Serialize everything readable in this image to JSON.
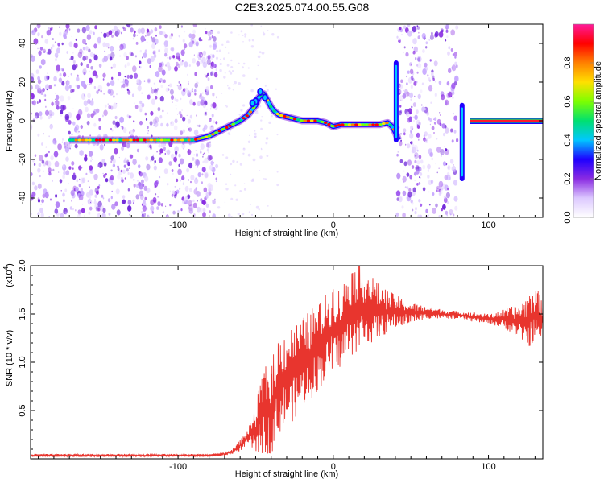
{
  "title": "C2E3.2025.074.00.55.G08",
  "chart_data": [
    {
      "type": "heatmap",
      "xlabel": "Height of straight line (km)",
      "ylabel": "Frequency (Hz)",
      "xlim": [
        -195,
        135
      ],
      "ylim": [
        -50,
        50
      ],
      "xticks": [
        -100,
        0,
        100
      ],
      "yticks": [
        -40,
        -20,
        0,
        20,
        40
      ],
      "colorbar": {
        "label": "Normalized spectral amplitude",
        "range": [
          0.0,
          1.0
        ],
        "ticks": [
          "0.0",
          "0.2",
          "0.4",
          "0.6",
          "0.8"
        ],
        "colors": [
          "#ffffff",
          "#dcc8ff",
          "#8a2be2",
          "#1e00ff",
          "#00c8ff",
          "#00e070",
          "#7dff00",
          "#ffe000",
          "#ff8000",
          "#ff0000",
          "#ff1a9a"
        ]
      },
      "ridge": {
        "x": [
          -170,
          -160,
          -150,
          -140,
          -130,
          -120,
          -110,
          -100,
          -95,
          -90,
          -85,
          -80,
          -75,
          -70,
          -65,
          -60,
          -55,
          -50,
          -48,
          -45,
          -42,
          -40,
          -38,
          -35,
          -30,
          -25,
          -20,
          -15,
          -10,
          -5,
          0,
          5,
          10,
          15,
          20,
          25,
          30,
          35,
          38,
          40,
          42
        ],
        "y": [
          -10,
          -10,
          -10,
          -10,
          -10,
          -10,
          -10,
          -10,
          -10,
          -10,
          -9,
          -8,
          -6,
          -4,
          -2,
          0,
          3,
          8,
          12,
          14,
          10,
          7,
          5,
          3,
          2,
          1,
          0,
          0,
          0,
          -1,
          -3,
          -2,
          -2,
          -2,
          -2,
          -2,
          -2,
          -1,
          -3,
          -6,
          -10
        ]
      },
      "vertical_streaks": [
        {
          "x": 40.5,
          "y": [
            -10,
            30
          ]
        },
        {
          "x": 83,
          "y": [
            -30,
            8
          ]
        }
      ],
      "flat_line": {
        "x": [
          88,
          135
        ],
        "y": 0
      },
      "noise_regions": [
        [
          -195,
          -75
        ],
        [
          41,
          80
        ]
      ]
    },
    {
      "type": "line",
      "xlabel": "Height of straight line (km)",
      "ylabel": "SNR (10 * v/v)",
      "y_multiplier": "(x10",
      "y_exponent": "4",
      "xlim": [
        -195,
        135
      ],
      "ylim": [
        0,
        2.0
      ],
      "xticks": [
        -100,
        0,
        100
      ],
      "yticks": [
        0.5,
        1.0,
        1.5,
        2.0
      ],
      "ytick_labels": [
        "0.5",
        "1.0",
        "1.5",
        "2.0"
      ],
      "color": "#e8352e",
      "envelope": {
        "x": [
          -195,
          -80,
          -70,
          -65,
          -60,
          -55,
          -50,
          -45,
          -40,
          -35,
          -30,
          -25,
          -20,
          -15,
          -10,
          -5,
          0,
          5,
          10,
          15,
          20,
          25,
          30,
          35,
          40,
          50,
          60,
          70,
          80,
          90,
          100,
          110,
          120,
          125,
          130,
          135
        ],
        "lo": [
          0.02,
          0.02,
          0.03,
          0.05,
          0.08,
          0.15,
          0.05,
          0.05,
          0.05,
          0.25,
          0.35,
          0.4,
          0.55,
          0.6,
          0.7,
          0.8,
          0.85,
          0.95,
          1.05,
          1.1,
          1.15,
          1.2,
          1.25,
          1.3,
          1.35,
          1.4,
          1.45,
          1.45,
          1.45,
          1.42,
          1.4,
          1.35,
          1.25,
          1.15,
          1.2,
          1.25
        ],
        "hi": [
          0.05,
          0.05,
          0.07,
          0.1,
          0.2,
          0.3,
          0.55,
          0.95,
          1.0,
          1.3,
          1.35,
          1.4,
          1.45,
          1.55,
          1.6,
          1.7,
          1.85,
          1.75,
          2.0,
          2.0,
          2.0,
          1.9,
          1.8,
          1.75,
          1.7,
          1.62,
          1.58,
          1.55,
          1.53,
          1.52,
          1.5,
          1.55,
          1.6,
          1.7,
          1.8,
          1.65
        ]
      }
    }
  ]
}
